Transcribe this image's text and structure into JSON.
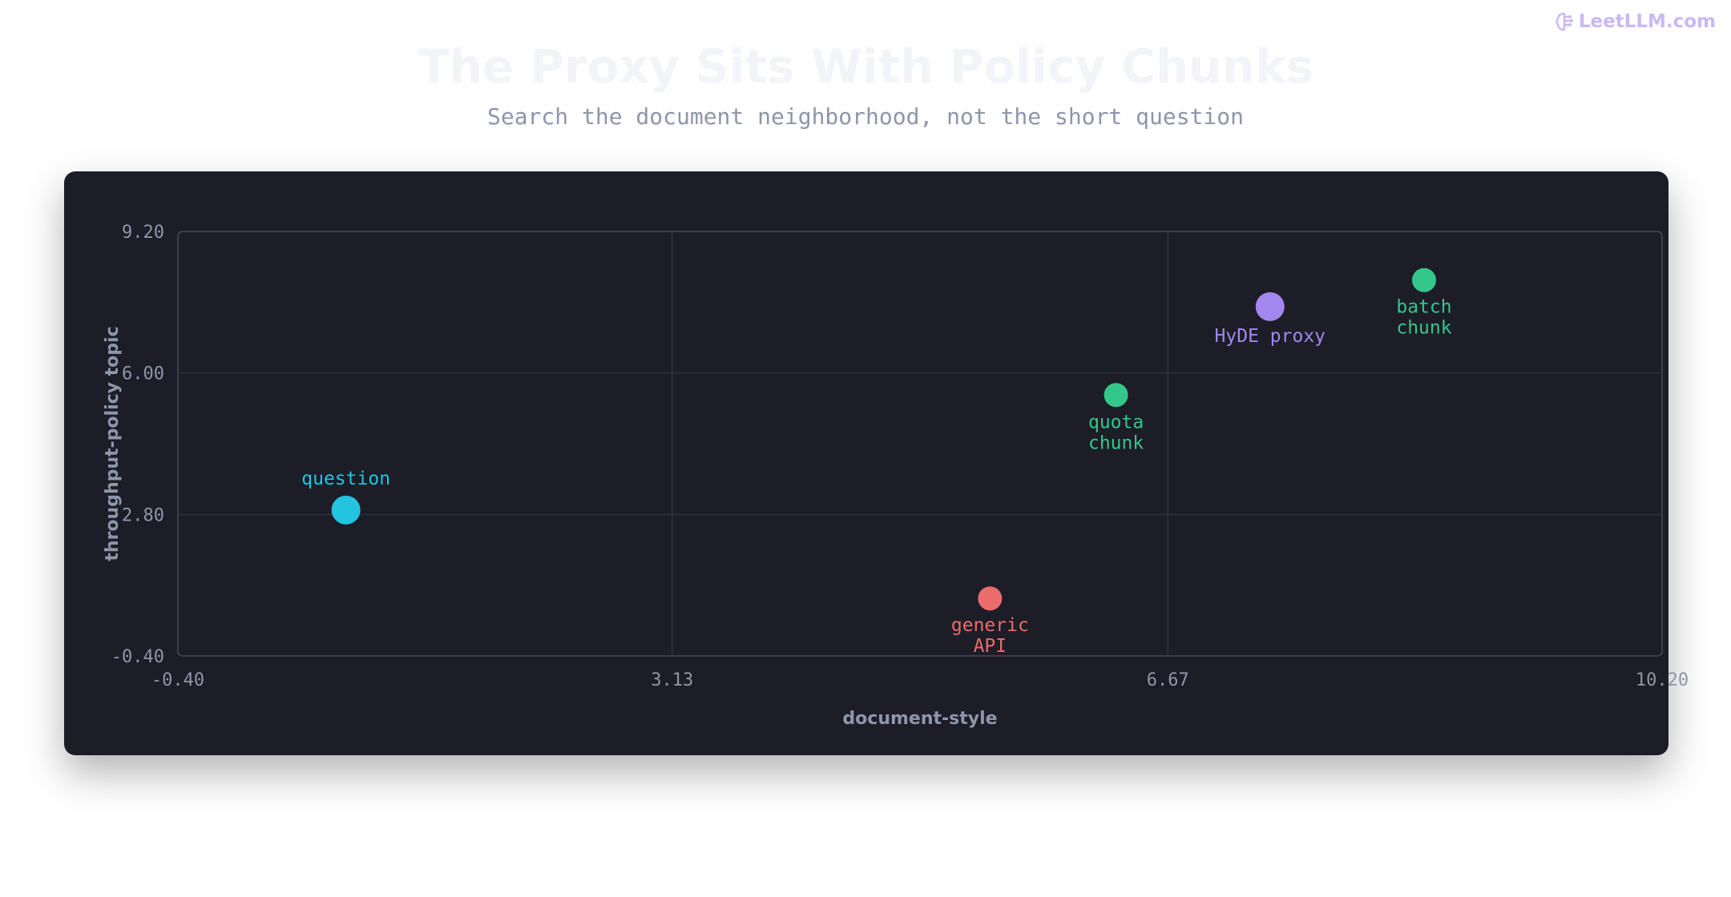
{
  "brand": {
    "text": "LeetLLM.com",
    "icon": "brain-icon",
    "color": "#c9b8f6"
  },
  "header": {
    "title": "The Proxy Sits With Policy Chunks",
    "subtitle": "Search the document neighborhood, not the short question"
  },
  "chart_data": {
    "type": "scatter",
    "xlabel": "document-style",
    "ylabel": "throughput-policy topic",
    "xlim": [
      -0.4,
      10.2
    ],
    "ylim": [
      -0.4,
      9.2
    ],
    "xticks": [
      "-0.40",
      "3.13",
      "6.67",
      "10.20"
    ],
    "yticks": [
      "-0.40",
      "2.80",
      "6.00",
      "9.20"
    ],
    "grid": true,
    "points": [
      {
        "label": [
          "question"
        ],
        "x": 0.8,
        "y": 2.9,
        "color": "#22c4e0",
        "size": "large",
        "label_position": "above"
      },
      {
        "label": [
          "generic",
          "API"
        ],
        "x": 5.4,
        "y": 0.9,
        "color": "#ec6b6b",
        "size": "medium",
        "label_position": "below"
      },
      {
        "label": [
          "quota",
          "chunk"
        ],
        "x": 6.3,
        "y": 5.5,
        "color": "#34c78b",
        "size": "medium",
        "label_position": "below"
      },
      {
        "label": [
          "HyDE proxy"
        ],
        "x": 7.4,
        "y": 7.5,
        "color": "#a386ee",
        "size": "large",
        "label_position": "below"
      },
      {
        "label": [
          "batch",
          "chunk"
        ],
        "x": 8.5,
        "y": 8.1,
        "color": "#34c78b",
        "size": "medium",
        "label_position": "below"
      }
    ]
  }
}
